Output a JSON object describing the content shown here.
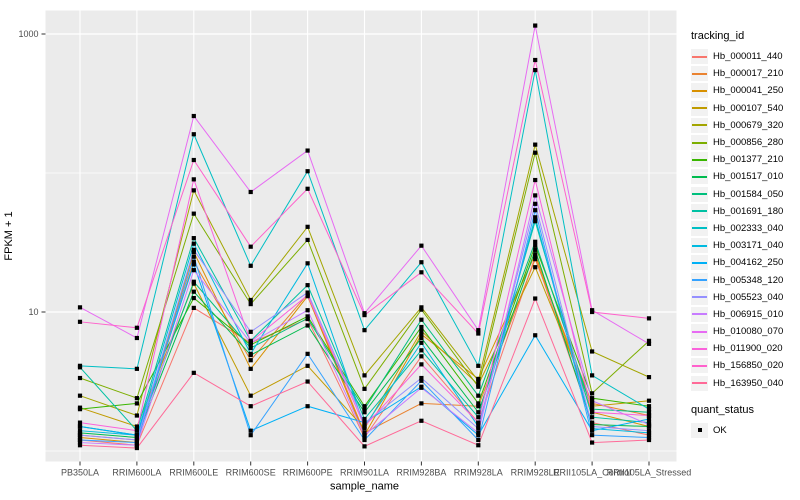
{
  "chart": {
    "legend_title": "tracking_id",
    "quant_legend_title": "quant_status",
    "quant_legend_label": "OK",
    "colors": {
      "panel_bg": "#EBEBEB",
      "grid": "#FFFFFF",
      "tick_mark": "#333333",
      "tick_text": "#4D4D4D",
      "point": "#000000",
      "legend_key_bg": "#F2F2F2"
    }
  },
  "chart_data": {
    "type": "line",
    "title": "",
    "xlabel": "sample_name",
    "ylabel": "FPKM + 1",
    "y_scale": "log10",
    "ylim": [
      1,
      1460
    ],
    "y_ticks": [
      1000,
      10
    ],
    "grid_decades": [
      1000,
      100,
      10,
      1
    ],
    "legend_position": "right",
    "grid": true,
    "categories": [
      "PB350LA",
      "RRIM600LA",
      "RRIM600LE",
      "RRIM600SE",
      "RRIM600PE",
      "RRIM901LA",
      "RRIM928BA",
      "RRIM928LA",
      "RRIM928LE",
      "RRII105LA_Control",
      "RRII105LA_Stressed"
    ],
    "series": [
      {
        "name": "Hb_000011_440",
        "color": "#F8766D",
        "values": [
          1.2,
          1.1,
          10.7,
          6.0,
          8.9,
          1.25,
          4.8,
          1.6,
          25,
          1.6,
          1.3
        ]
      },
      {
        "name": "Hb_000017_210",
        "color": "#EA8331",
        "values": [
          1.3,
          1.2,
          23,
          4.5,
          13.4,
          1.35,
          2.2,
          2.1,
          24,
          2.2,
          1.8
        ]
      },
      {
        "name": "Hb_000041_250",
        "color": "#D89000",
        "values": [
          1.25,
          1.15,
          27,
          3.9,
          13.0,
          1.3,
          6.9,
          3.3,
          26,
          1.9,
          1.5
        ]
      },
      {
        "name": "Hb_000107_540",
        "color": "#C09B00",
        "values": [
          2.05,
          1.5,
          16,
          2.5,
          4.1,
          1.45,
          7.3,
          3.0,
          21,
          2.1,
          2.3
        ]
      },
      {
        "name": "Hb_000679_320",
        "color": "#A3A500",
        "values": [
          2.5,
          1.8,
          75,
          12.2,
          41,
          3.5,
          10.8,
          3.2,
          160,
          5.2,
          3.4
        ]
      },
      {
        "name": "Hb_000856_280",
        "color": "#7CAE00",
        "values": [
          3.35,
          2.4,
          51,
          11.4,
          33,
          2.8,
          10.4,
          2.9,
          140,
          2.6,
          6.2
        ]
      },
      {
        "name": "Hb_001377_210",
        "color": "#39B600",
        "values": [
          2.0,
          2.2,
          12.6,
          5.8,
          9.3,
          2.1,
          7.8,
          2.2,
          30,
          2.4,
          2.1
        ]
      },
      {
        "name": "Hb_001517_010",
        "color": "#00BB4E",
        "values": [
          1.35,
          1.25,
          14,
          4.9,
          8.0,
          1.9,
          6.5,
          1.9,
          28,
          1.55,
          1.5
        ]
      },
      {
        "name": "Hb_001584_050",
        "color": "#00BF7D",
        "values": [
          1.5,
          1.3,
          16.5,
          5.5,
          9.0,
          2.0,
          8.8,
          2.5,
          32,
          2.0,
          1.9
        ]
      },
      {
        "name": "Hb_001691_180",
        "color": "#00C1A3",
        "values": [
          4.0,
          1.4,
          34,
          6.2,
          15.6,
          1.7,
          5.3,
          1.75,
          45,
          1.75,
          1.6
        ]
      },
      {
        "name": "Hb_002333_040",
        "color": "#00BFC4",
        "values": [
          4.1,
          3.9,
          190,
          21.5,
          103,
          7.4,
          22.8,
          4.1,
          550,
          3.5,
          2.0
        ]
      },
      {
        "name": "Hb_003171_040",
        "color": "#00BAE0",
        "values": [
          1.4,
          1.3,
          31,
          5.0,
          22.4,
          1.5,
          6.0,
          1.5,
          48,
          1.45,
          1.35
        ]
      },
      {
        "name": "Hb_004162_250",
        "color": "#00B0F6",
        "values": [
          1.5,
          1.3,
          22,
          1.4,
          2.1,
          1.6,
          2.9,
          1.3,
          6.8,
          1.4,
          1.7
        ]
      },
      {
        "name": "Hb_005348_120",
        "color": "#35A2FF",
        "values": [
          1.2,
          1.15,
          25,
          1.3,
          5.0,
          1.2,
          3.2,
          1.2,
          54,
          1.3,
          1.25
        ]
      },
      {
        "name": "Hb_005523_040",
        "color": "#9590FF",
        "values": [
          1.3,
          1.2,
          28,
          7.2,
          13.8,
          1.58,
          3.35,
          1.45,
          60,
          1.5,
          1.4
        ]
      },
      {
        "name": "Hb_006915_010",
        "color": "#C77CFF",
        "values": [
          1.15,
          1.1,
          20,
          6.0,
          10.3,
          1.3,
          2.85,
          1.35,
          69,
          2.3,
          1.55
        ]
      },
      {
        "name": "Hb_010080_070",
        "color": "#E76BF3",
        "values": [
          10.8,
          6.5,
          257,
          73,
          145,
          9.8,
          30,
          7.4,
          1150,
          10.3,
          5.9
        ]
      },
      {
        "name": "Hb_011900_020",
        "color": "#FA62DB",
        "values": [
          1.6,
          1.4,
          90,
          6.1,
          13.2,
          1.5,
          4.2,
          1.6,
          89,
          1.9,
          1.8
        ]
      },
      {
        "name": "Hb_156850_020",
        "color": "#FF61CC",
        "values": [
          8.5,
          7.7,
          124,
          29.5,
          77,
          9.5,
          19.3,
          7.0,
          650,
          10.0,
          9.0
        ]
      },
      {
        "name": "Hb_163950_040",
        "color": "#FF6A98",
        "values": [
          1.1,
          1.05,
          3.65,
          2.1,
          3.16,
          1.08,
          1.65,
          1.1,
          12.5,
          1.15,
          1.2
        ]
      }
    ],
    "point_legend": {
      "title": "quant_status",
      "label": "OK"
    }
  }
}
